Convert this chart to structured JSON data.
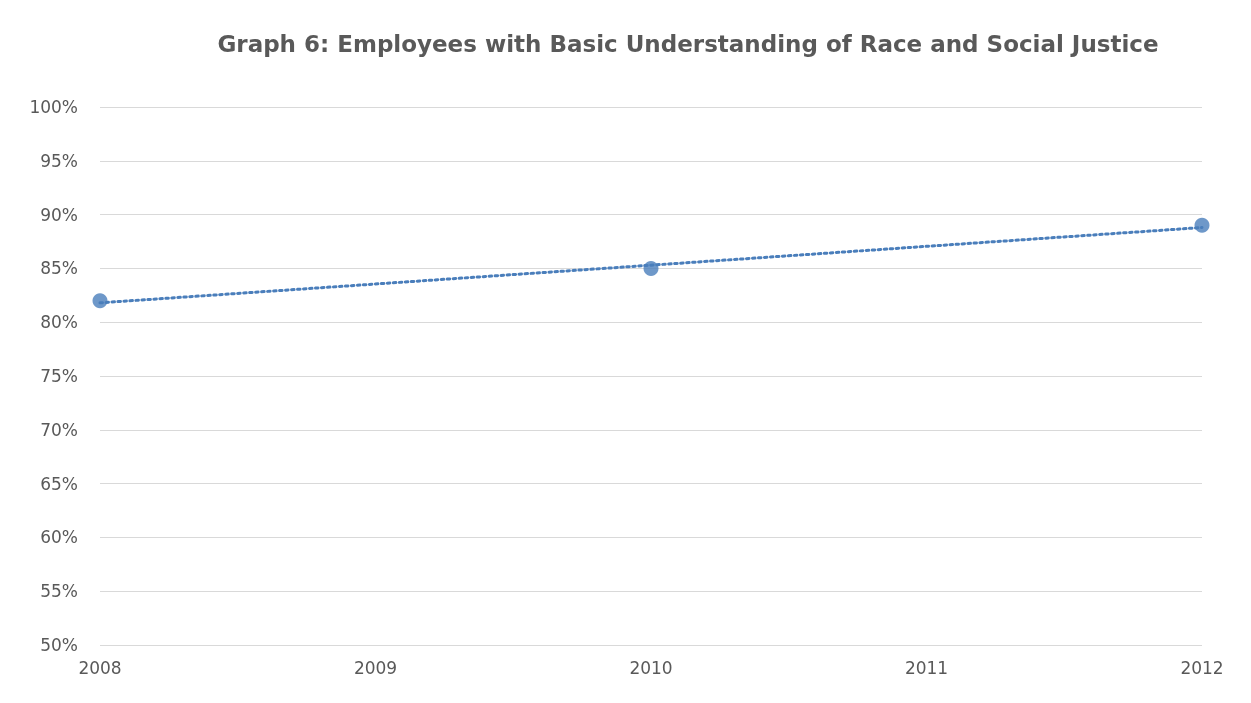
{
  "chart_data": {
    "type": "scatter",
    "title": "Graph 6: Employees with Basic Understanding of Race and Social Justice",
    "xlim": [
      2008,
      2012
    ],
    "xticks": [
      2008,
      2009,
      2010,
      2011,
      2012
    ],
    "ylim": [
      50,
      100
    ],
    "yticks": [
      {
        "value": 50,
        "label": "50%"
      },
      {
        "value": 55,
        "label": "55%"
      },
      {
        "value": 60,
        "label": "60%"
      },
      {
        "value": 65,
        "label": "65%"
      },
      {
        "value": 70,
        "label": "70%"
      },
      {
        "value": 75,
        "label": "75%"
      },
      {
        "value": 80,
        "label": "80%"
      },
      {
        "value": 85,
        "label": "85%"
      },
      {
        "value": 90,
        "label": "90%"
      },
      {
        "value": 95,
        "label": "95%"
      },
      {
        "value": 100,
        "label": "100%"
      }
    ],
    "grid": "y",
    "series": [
      {
        "color": "#4a7ebb",
        "x": [
          2008,
          2010,
          2012
        ],
        "values": [
          82,
          85,
          89
        ],
        "marker": "circle"
      },
      {
        "type": "line",
        "color": "#4a7ebb",
        "x": [
          2008,
          2012
        ],
        "values": [
          81.8,
          88.8
        ],
        "marker": "none",
        "line_style": "dotted"
      }
    ]
  }
}
